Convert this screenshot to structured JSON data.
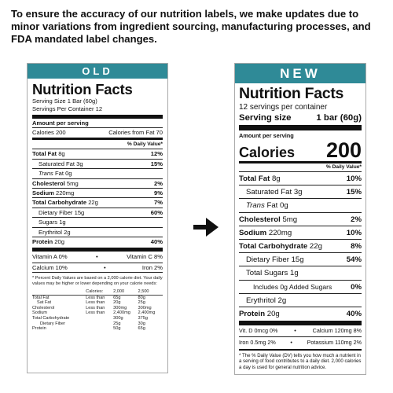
{
  "headline": "To ensure the accuracy of our nutrition labels, we make updates due to minor variations from ingredient sourcing, manufacturing processes, and FDA mandated label changes.",
  "old": {
    "banner": "OLD",
    "title": "Nutrition Facts",
    "serving_size": "Serving Size 1 Bar (60g)",
    "servings_per_container": "Servings Per Container 12",
    "amount_per_serving": "Amount per serving",
    "calories": "Calories 200",
    "calories_from_fat": "Calories from Fat 70",
    "daily_value_header": "% Daily Value*",
    "rows": [
      {
        "label": "Total Fat",
        "amount": "8g",
        "dv": "12%"
      },
      {
        "label": "Saturated Fat",
        "amount": "3g",
        "dv": "15%"
      },
      {
        "label": "Trans",
        "amount": "Fat 0g",
        "dv": ""
      },
      {
        "label": "Cholesterol",
        "amount": "5mg",
        "dv": "2%"
      },
      {
        "label": "Sodium",
        "amount": "220mg",
        "dv": "9%"
      },
      {
        "label": "Total Carbohydrate",
        "amount": "22g",
        "dv": "7%"
      },
      {
        "label": "Dietary Fiber",
        "amount": "15g",
        "dv": "60%"
      },
      {
        "label": "Sugars",
        "amount": "1g",
        "dv": ""
      },
      {
        "label": "Erythritol",
        "amount": "2g",
        "dv": ""
      },
      {
        "label": "Protein",
        "amount": "20g",
        "dv": "40%"
      }
    ],
    "vitamins": [
      {
        "left": "Vitamin A 0%",
        "right": "Vitamin C 8%"
      },
      {
        "left": "Calcium 10%",
        "right": "Iron 2%"
      }
    ],
    "bullet": "•",
    "footnote": "* Percent Daily Values are based on a 2,000 calorie diet. Your daily values may be higher or lower depending on your calorie needs:",
    "table": {
      "header": [
        "",
        "Calories:",
        "2,000",
        "2,500"
      ],
      "rows": [
        [
          "Total Fat",
          "Less than",
          "65g",
          "80g"
        ],
        [
          "Sat Fat",
          "Less than",
          "20g",
          "25g"
        ],
        [
          "Cholesterol",
          "Less than",
          "300mg",
          "300mg"
        ],
        [
          "Sodium",
          "Less than",
          "2,400mg",
          "2,400mg"
        ],
        [
          "Total Carbohydrate",
          "",
          "300g",
          "375g"
        ],
        [
          "Dietary Fiber",
          "",
          "25g",
          "30g"
        ],
        [
          "Protein",
          "",
          "50g",
          "65g"
        ]
      ]
    }
  },
  "new": {
    "banner": "NEW",
    "title": "Nutrition Facts",
    "servings_per_container": "12 servings per container",
    "serving_size_label": "Serving size",
    "serving_size_value": "1 bar (60g)",
    "amount_per_serving": "Amount per serving",
    "calories_label": "Calories",
    "calories_value": "200",
    "daily_value_header": "% Daily Value*",
    "rows": [
      {
        "label": "Total Fat",
        "amount": "8g",
        "dv": "10%"
      },
      {
        "label": "Saturated Fat",
        "amount": "3g",
        "dv": "15%"
      },
      {
        "label": "Trans",
        "amount": "Fat 0g",
        "dv": ""
      },
      {
        "label": "Cholesterol",
        "amount": "5mg",
        "dv": "2%"
      },
      {
        "label": "Sodium",
        "amount": "220mg",
        "dv": "10%"
      },
      {
        "label": "Total Carbohydrate",
        "amount": "22g",
        "dv": "8%"
      },
      {
        "label": "Dietary Fiber",
        "amount": "15g",
        "dv": "54%"
      },
      {
        "label": "Total Sugars",
        "amount": "1g",
        "dv": ""
      },
      {
        "label": "Includes 0g Added Sugars",
        "amount": "",
        "dv": "0%"
      },
      {
        "label": "Erythritol",
        "amount": "2g",
        "dv": ""
      },
      {
        "label": "Protein",
        "amount": "20g",
        "dv": "40%"
      }
    ],
    "vitamins": [
      {
        "left": "Vit. D 0mcg 0%",
        "right": "Calcium 120mg 8%"
      },
      {
        "left": "Iron 0.5mg 2%",
        "right": "Potassium 110mg 2%"
      }
    ],
    "bullet": "•",
    "footnote": "* The % Daily Value (DV) tells you how much a nutrient in a serving of food contributes to a daily diet. 2,000 calories a day is used for general nutrition advice."
  }
}
